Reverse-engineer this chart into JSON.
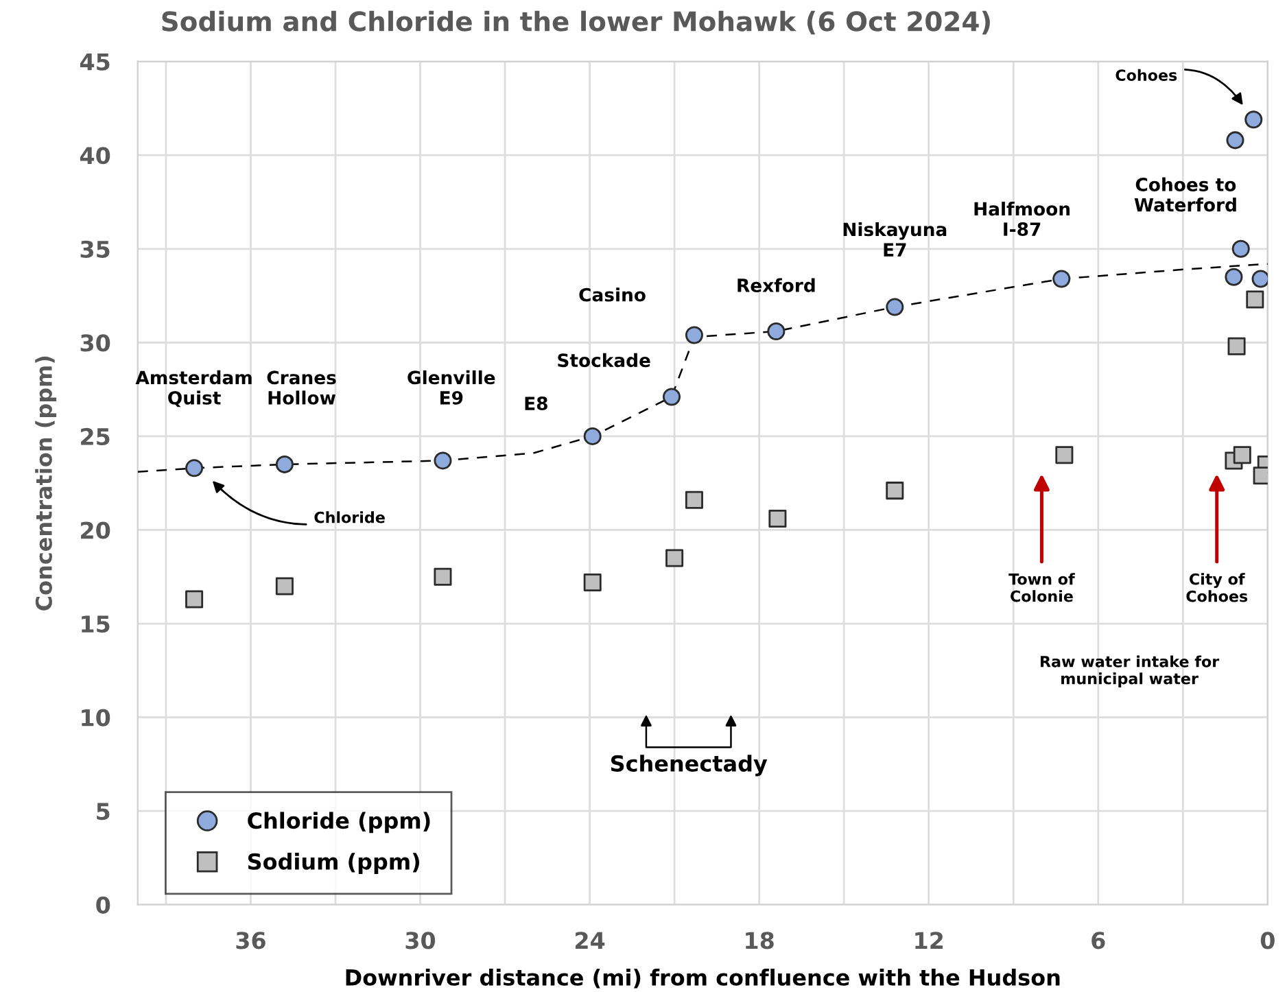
{
  "chart_data": {
    "type": "scatter",
    "title": "Sodium and Chloride in the lower Mohawk (6 Oct 2024)",
    "xlabel": "Downriver distance (mi) from confluence with the Hudson",
    "ylabel": "Concentration (ppm)",
    "series": [
      {
        "name": "Chloride (ppm)",
        "color": "#8faadc",
        "marker": "circle",
        "x": [
          38,
          34.8,
          29.2,
          23.9,
          21.1,
          20.3,
          17.4,
          13.2,
          7.3,
          1.2,
          0.95,
          0.25,
          1.15,
          0.5
        ],
        "values": [
          23.3,
          23.5,
          23.7,
          25.0,
          27.1,
          30.4,
          30.6,
          31.9,
          33.4,
          33.5,
          35.0,
          33.4,
          40.8,
          41.9
        ]
      },
      {
        "name": "Sodium (ppm)",
        "color": "#bfbfbf",
        "marker": "square",
        "x": [
          38,
          34.8,
          29.2,
          23.9,
          21.0,
          20.3,
          17.35,
          13.2,
          7.2,
          1.1,
          0.45,
          1.2,
          0.9,
          0.05,
          0.2
        ],
        "values": [
          16.3,
          17.0,
          17.5,
          17.2,
          18.5,
          21.6,
          20.6,
          22.1,
          24.0,
          29.8,
          32.3,
          23.7,
          24.0,
          23.5,
          22.9
        ]
      },
      {
        "type": "line",
        "color": "#000000",
        "line_style": "dashed",
        "marker": "none",
        "x": [
          40,
          38,
          34.8,
          29.2,
          26,
          23.9,
          21.1,
          20.3,
          17.4,
          13.2,
          7.3,
          3,
          0
        ],
        "values": [
          23.1,
          23.3,
          23.5,
          23.7,
          24.1,
          25.0,
          27.1,
          30.3,
          30.6,
          31.9,
          33.4,
          33.9,
          34.2
        ]
      }
    ],
    "xlim": [
      40,
      0
    ],
    "xticks": [
      {
        "value": 39,
        "label": null
      },
      36,
      {
        "value": 33,
        "label": null
      },
      30,
      {
        "value": 27,
        "label": null
      },
      24,
      {
        "value": 21,
        "label": null
      },
      18,
      {
        "value": 15,
        "label": null
      },
      12,
      {
        "value": 9,
        "label": null
      },
      6,
      {
        "value": 3,
        "label": null
      },
      0
    ],
    "ylim": [
      0,
      45
    ],
    "yticks": [
      0,
      5,
      10,
      15,
      20,
      25,
      30,
      35,
      40,
      45
    ],
    "grid": true,
    "legend": "bottom left",
    "annotations": [
      "Amsterdam\nQuist",
      "Cranes\nHollow",
      "Glenville\nE9",
      "E8",
      "Stockade",
      "Casino",
      "Rexford",
      "Niskayuna\nE7",
      "Halfmoon\nI-87",
      "Cohoes to\nWaterford",
      "Cohoes",
      "Chloride",
      "Town of\nColonie",
      "City of\nCohoes",
      "Raw water intake for\nmunicipal water",
      "Schenectady"
    ]
  }
}
